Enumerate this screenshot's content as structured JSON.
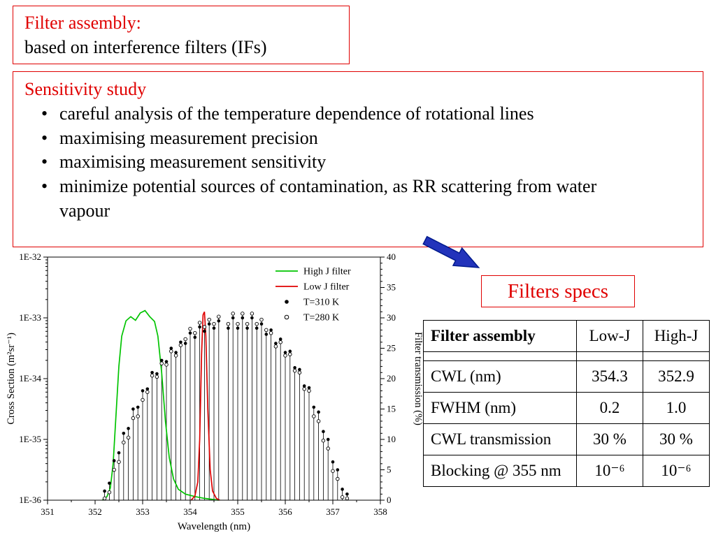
{
  "slide": {
    "title_box": {
      "line1": "Filter assembly:",
      "line2": "based on interference filters (IFs)"
    },
    "sensitivity_box": {
      "title": "Sensitivity study",
      "bullet_char": "•",
      "bullets": [
        "careful analysis of the temperature dependence of rotational lines",
        "maximising measurement precision",
        "maximising measurement sensitivity",
        "minimize potential sources of contamination, as RR scattering from water vapour"
      ]
    },
    "filters_specs_label": "Filters specs",
    "table": {
      "header": [
        "Filter assembly",
        "Low-J",
        "High-J"
      ],
      "rows": [
        [
          "CWL (nm)",
          "354.3",
          "352.9"
        ],
        [
          "FWHM (nm)",
          "0.2",
          "1.0"
        ],
        [
          "CWL transmission",
          "30 %",
          "30 %"
        ],
        [
          "Blocking @ 355 nm",
          "10⁻⁶",
          "10⁻⁶"
        ]
      ]
    },
    "colors": {
      "accent_red": "#e00000",
      "arrow_blue": "#2233bb",
      "arrow_edge": "#001a8c",
      "high_j_green": "#00c400",
      "low_j_red": "#e00000"
    }
  },
  "chart_data": {
    "type": "line+stem",
    "title": "",
    "xlabel": "Wavelength (nm)",
    "ylabel_left": "Cross Section (m²sr⁻¹)",
    "ylabel_right": "Filter transmission (%)",
    "xlim": [
      351,
      358
    ],
    "ylim_left_log10": [
      -36,
      -32
    ],
    "ylim_right": [
      0,
      40
    ],
    "x_ticks": [
      351,
      352,
      353,
      354,
      355,
      356,
      357,
      358
    ],
    "left_ticks": [
      {
        "v": -32,
        "label": "1E-32"
      },
      {
        "v": -33,
        "label": "1E-33"
      },
      {
        "v": -34,
        "label": "1E-34"
      },
      {
        "v": -35,
        "label": "1E-35"
      },
      {
        "v": -36,
        "label": "1E-36"
      }
    ],
    "right_ticks": [
      0,
      5,
      10,
      15,
      20,
      25,
      30,
      35,
      40
    ],
    "legend": [
      {
        "label": "High J filter",
        "type": "line",
        "color": "#00c400"
      },
      {
        "label": "Low J filter",
        "type": "line",
        "color": "#e00000"
      },
      {
        "label": "T=310 K",
        "type": "dot-filled"
      },
      {
        "label": "T=280 K",
        "type": "dot-open"
      }
    ],
    "stems_note": "rotational Raman lines: [wavelength_nm, log10 cross-section T=310K, log10 cross-section T=280K]",
    "stems": [
      [
        352.2,
        -35.85,
        -35.97
      ],
      [
        352.3,
        -35.72,
        -35.87
      ],
      [
        352.4,
        -35.35,
        -35.5
      ],
      [
        352.5,
        -35.22,
        -35.37
      ],
      [
        352.6,
        -34.9,
        -35.05
      ],
      [
        352.7,
        -34.82,
        -34.97
      ],
      [
        352.8,
        -34.5,
        -34.65
      ],
      [
        352.9,
        -34.47,
        -34.62
      ],
      [
        353.0,
        -34.2,
        -34.35
      ],
      [
        353.1,
        -34.17,
        -34.22
      ],
      [
        353.2,
        -33.9,
        -33.95
      ],
      [
        353.3,
        -33.92,
        -33.97
      ],
      [
        353.4,
        -33.7,
        -33.75
      ],
      [
        353.5,
        -33.72,
        -33.77
      ],
      [
        353.6,
        -33.5,
        -33.55
      ],
      [
        353.7,
        -33.57,
        -33.62
      ],
      [
        353.8,
        -33.4,
        -33.45
      ],
      [
        353.9,
        -33.42,
        -33.35
      ],
      [
        354.0,
        -33.25,
        -33.18
      ],
      [
        354.1,
        -33.32,
        -33.25
      ],
      [
        354.2,
        -33.15,
        -33.08
      ],
      [
        354.3,
        -33.22,
        -33.15
      ],
      [
        354.4,
        -33.1,
        -33.03
      ],
      [
        354.5,
        -33.17,
        -33.1
      ],
      [
        354.6,
        -33.05,
        -32.98
      ],
      [
        354.8,
        -33.17,
        -33.1
      ],
      [
        354.9,
        -33.0,
        -32.93
      ],
      [
        355.0,
        -33.17,
        -33.1
      ],
      [
        355.1,
        -33.0,
        -32.93
      ],
      [
        355.2,
        -33.17,
        -33.1
      ],
      [
        355.3,
        -33.0,
        -32.93
      ],
      [
        355.4,
        -33.17,
        -33.1
      ],
      [
        355.5,
        -33.1,
        -33.03
      ],
      [
        355.6,
        -33.27,
        -33.2
      ],
      [
        355.7,
        -33.2,
        -33.25
      ],
      [
        355.8,
        -33.42,
        -33.47
      ],
      [
        355.9,
        -33.35,
        -33.4
      ],
      [
        356.0,
        -33.57,
        -33.62
      ],
      [
        356.1,
        -33.55,
        -33.6
      ],
      [
        356.2,
        -33.82,
        -33.87
      ],
      [
        356.3,
        -33.85,
        -33.9
      ],
      [
        356.4,
        -34.12,
        -34.17
      ],
      [
        356.5,
        -34.15,
        -34.2
      ],
      [
        356.6,
        -34.47,
        -34.62
      ],
      [
        356.7,
        -34.55,
        -34.7
      ],
      [
        356.8,
        -34.87,
        -35.02
      ],
      [
        356.9,
        -35.0,
        -35.15
      ],
      [
        357.0,
        -35.37,
        -35.52
      ],
      [
        357.1,
        -35.5,
        -35.65
      ],
      [
        357.2,
        -35.82,
        -35.95
      ],
      [
        357.3,
        -35.9,
        -35.97
      ]
    ],
    "high_j_filter": {
      "color": "#00c400",
      "cwl_nm": 352.9,
      "fwhm_nm": 1.0,
      "peak_pct": 31,
      "points": [
        [
          352.15,
          0
        ],
        [
          352.25,
          0.6
        ],
        [
          352.32,
          2
        ],
        [
          352.38,
          6
        ],
        [
          352.44,
          14
        ],
        [
          352.5,
          22
        ],
        [
          352.56,
          27
        ],
        [
          352.65,
          29.5
        ],
        [
          352.75,
          30.2
        ],
        [
          352.85,
          29.6
        ],
        [
          352.95,
          30.8
        ],
        [
          353.05,
          31.2
        ],
        [
          353.15,
          30.2
        ],
        [
          353.25,
          29.4
        ],
        [
          353.32,
          27
        ],
        [
          353.4,
          21
        ],
        [
          353.48,
          13
        ],
        [
          353.56,
          7
        ],
        [
          353.65,
          3.5
        ],
        [
          353.75,
          1.8
        ],
        [
          353.9,
          1.0
        ],
        [
          354.1,
          0.6
        ],
        [
          354.3,
          0.3
        ],
        [
          354.5,
          0.1
        ],
        [
          354.6,
          0
        ]
      ]
    },
    "low_j_filter": {
      "color": "#e00000",
      "cwl_nm": 354.3,
      "fwhm_nm": 0.2,
      "peak_pct": 31,
      "points": [
        [
          354.02,
          0
        ],
        [
          354.1,
          0.7
        ],
        [
          354.16,
          3
        ],
        [
          354.2,
          10
        ],
        [
          354.24,
          24
        ],
        [
          354.27,
          30.5
        ],
        [
          354.3,
          31
        ],
        [
          354.33,
          27
        ],
        [
          354.37,
          15
        ],
        [
          354.42,
          5
        ],
        [
          354.47,
          1.5
        ],
        [
          354.55,
          0.3
        ],
        [
          354.62,
          0
        ]
      ]
    }
  }
}
